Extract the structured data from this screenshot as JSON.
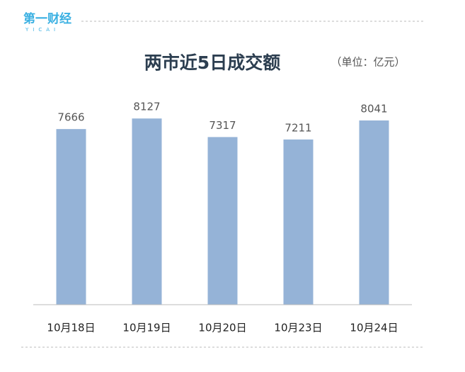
{
  "logo": {
    "text": "第一财经",
    "sub": "YICAI"
  },
  "chart_data": {
    "type": "bar",
    "title": "两市近5日成交额",
    "unit_label": "（单位：亿元）",
    "categories": [
      "10月18日",
      "10月19日",
      "10月20日",
      "10月23日",
      "10月24日"
    ],
    "values": [
      7666,
      8127,
      7317,
      7211,
      8041
    ],
    "color": "#95b3d7",
    "ylim": [
      0,
      9000
    ],
    "grid": false
  }
}
